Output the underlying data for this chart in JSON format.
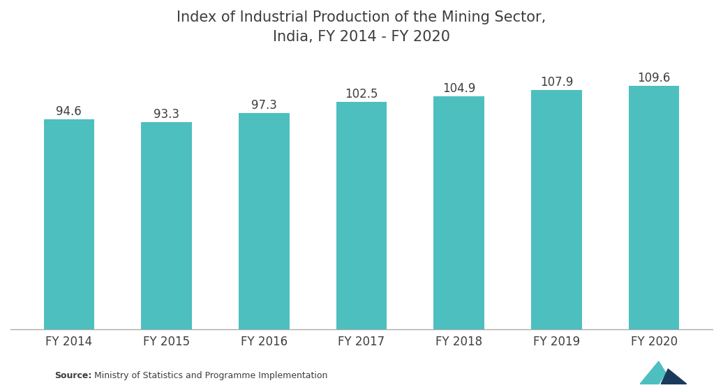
{
  "title": "Index of Industrial Production of the Mining Sector,\nIndia, FY 2014 - FY 2020",
  "categories": [
    "FY 2014",
    "FY 2015",
    "FY 2016",
    "FY 2017",
    "FY 2018",
    "FY 2019",
    "FY 2020"
  ],
  "values": [
    94.6,
    93.3,
    97.3,
    102.5,
    104.9,
    107.9,
    109.6
  ],
  "bar_color": "#4DBFBF",
  "background_color": "#ffffff",
  "title_fontsize": 15,
  "tick_fontsize": 12,
  "value_label_fontsize": 12,
  "source_bold": "Source:",
  "source_rest": " Ministry of Statistics and Programme Implementation",
  "ylim_min": 0,
  "ylim_max": 122,
  "title_color": "#3d3d3d",
  "tick_color": "#3d3d3d",
  "value_label_color": "#3d3d3d",
  "source_color": "#3d3d3d",
  "bar_width": 0.52,
  "logo_left_color": "#4DBFBF",
  "logo_right_color": "#1a3a5c"
}
